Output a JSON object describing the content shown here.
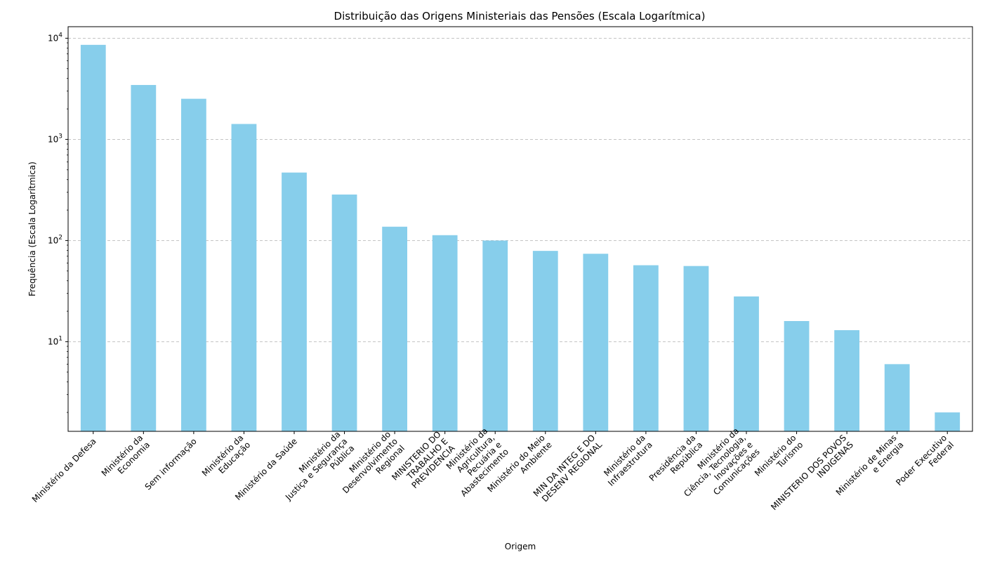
{
  "chart_data": {
    "type": "bar",
    "title": "Distribuição das Origens Ministeriais das Pensões (Escala Logarítmica)",
    "xlabel": "Origem",
    "ylabel": "Frequência (Escala Logarítmica)",
    "yscale": "log",
    "ylim": [
      1.3,
      13000
    ],
    "yticks": [
      {
        "value": 10,
        "exp": "1"
      },
      {
        "value": 100,
        "exp": "2"
      },
      {
        "value": 1000,
        "exp": "3"
      },
      {
        "value": 10000,
        "exp": "4"
      }
    ],
    "ytick_base": "10",
    "grid": "y-dashed",
    "bar_color": "#87CEEB",
    "categories": [
      [
        "Ministério da Defesa"
      ],
      [
        "Ministério da",
        "Economia"
      ],
      [
        "Sem informação"
      ],
      [
        "Ministério da",
        "Educação"
      ],
      [
        "Ministério da Saúde"
      ],
      [
        "Ministério da",
        "Justiça e Segurança",
        "Pública"
      ],
      [
        "Ministério do",
        "Desenvolvimento",
        "Regional"
      ],
      [
        "MINISTERIO DO",
        "TRABALHO E",
        "PREVIDENCIA"
      ],
      [
        "Ministério da",
        "Agricultura,",
        "Pecuária e",
        "Abastecimento"
      ],
      [
        "Ministério do Meio",
        "Ambiente"
      ],
      [
        "MIN DA INTEG E DO",
        "DESENV REGIONAL"
      ],
      [
        "Ministério da",
        "Infraestrutura"
      ],
      [
        "Presidência da",
        "República"
      ],
      [
        "Ministério da",
        "Ciência, Tecnologia,",
        "Inovações e",
        "Comunicações"
      ],
      [
        "Ministério do",
        "Turismo"
      ],
      [
        "MINISTERIO DOS POVOS",
        "INDIGENAS"
      ],
      [
        "Ministério de Minas",
        "e Energia"
      ],
      [
        "Poder Executivo",
        "Federal"
      ]
    ],
    "values": [
      8600,
      3450,
      2520,
      1420,
      470,
      285,
      137,
      113,
      100,
      79,
      74,
      57,
      56,
      28,
      16,
      13,
      6,
      2
    ]
  }
}
